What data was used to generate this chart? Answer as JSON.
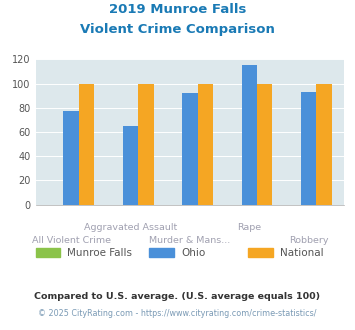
{
  "title_line1": "2019 Munroe Falls",
  "title_line2": "Violent Crime Comparison",
  "categories_top": [
    "",
    "Aggravated Assault",
    "",
    "Rape",
    ""
  ],
  "categories_bot": [
    "All Violent Crime",
    "",
    "Murder & Mans...",
    "",
    "Robbery"
  ],
  "munroe_falls": [
    0,
    0,
    0,
    0,
    0
  ],
  "ohio": [
    77,
    65,
    92,
    115,
    93
  ],
  "national": [
    100,
    100,
    100,
    100,
    100
  ],
  "color_munroe": "#8bc34a",
  "color_ohio": "#4a90d9",
  "color_national": "#f5a623",
  "ylim": [
    0,
    120
  ],
  "yticks": [
    0,
    20,
    40,
    60,
    80,
    100,
    120
  ],
  "plot_bg": "#dde8ec",
  "title_color": "#1a7ab5",
  "footer1": "Compared to U.S. average. (U.S. average equals 100)",
  "footer2": "© 2025 CityRating.com - https://www.cityrating.com/crime-statistics/",
  "footer1_color": "#333333",
  "footer2_color": "#7a9ab5",
  "legend_labels": [
    "Munroe Falls",
    "Ohio",
    "National"
  ]
}
